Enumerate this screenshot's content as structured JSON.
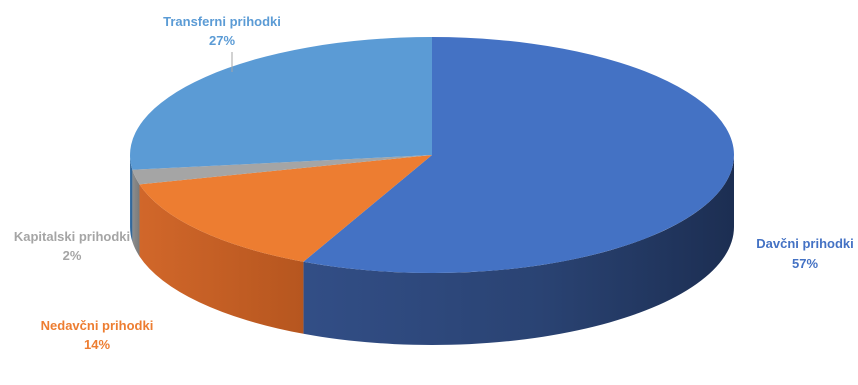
{
  "chart_data": {
    "type": "pie",
    "style": "3d",
    "series": [
      {
        "label": "Davčni prihodki",
        "value": 57,
        "value_label": "57%",
        "color": "#4472c4"
      },
      {
        "label": "Nedavčni prihodki",
        "value": 14,
        "value_label": "14%",
        "color": "#ed7d31"
      },
      {
        "label": "Kapitalski prihodki",
        "value": 2,
        "value_label": "2%",
        "color": "#a5a5a5"
      },
      {
        "label": "Transferni prihodki",
        "value": 27,
        "value_label": "27%",
        "color": "#5b9bd5"
      }
    ]
  }
}
